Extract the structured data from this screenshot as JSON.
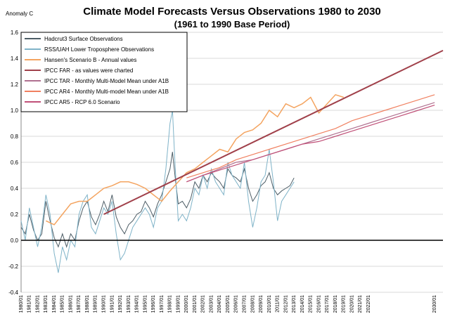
{
  "chart_data": {
    "type": "line",
    "title": "Climate Model Forecasts Versus Observations 1980 to 2030",
    "subtitle": "(1961 to 1990 Base Period)",
    "ylabel": "Anomaly C",
    "xlabel": "",
    "ylim": [
      -0.4,
      1.6
    ],
    "xlim": [
      1980.0,
      2031.0
    ],
    "grid": "horizontal",
    "legend_position": "top-left",
    "y_ticks": [
      "-0.4",
      "-0.2",
      "0.0",
      "0.2",
      "0.4",
      "0.6",
      "0.8",
      "1.0",
      "1.2",
      "1.4",
      "1.6"
    ],
    "x_tick_labels": [
      "1980/01",
      "1981/01",
      "1982/01",
      "1983/01",
      "1984/01",
      "1985/01",
      "1986/01",
      "1987/01",
      "1988/01",
      "1989/01",
      "1990/01",
      "1991/01",
      "1992/01",
      "1993/01",
      "1994/01",
      "1995/01",
      "1996/01",
      "1997/01",
      "1998/01",
      "1999/01",
      "2000/01",
      "2001/01",
      "2002/01",
      "2003/01",
      "2004/01",
      "2005/01",
      "2006/01",
      "2007/01",
      "2008/01",
      "2009/01",
      "2010/01",
      "2011/01",
      "2012/01",
      "2013/01",
      "2014/01",
      "2015/01",
      "2016/01",
      "2017/01",
      "2018/01",
      "2019/01",
      "2020/01",
      "2021/01",
      "2022/01",
      "2030/01"
    ],
    "x_tick_years": [
      1980,
      1981,
      1982,
      1983,
      1984,
      1985,
      1986,
      1987,
      1988,
      1989,
      1990,
      1991,
      1992,
      1993,
      1994,
      1995,
      1996,
      1997,
      1998,
      1999,
      2000,
      2001,
      2002,
      2003,
      2004,
      2005,
      2006,
      2007,
      2008,
      2009,
      2010,
      2011,
      2012,
      2013,
      2014,
      2015,
      2016,
      2017,
      2018,
      2019,
      2020,
      2021,
      2022,
      2030
    ],
    "series": [
      {
        "name": "Hadcrut3 Surface Observations",
        "color": "#4d5d66",
        "x": [
          1980.0,
          1980.5,
          1981.0,
          1981.5,
          1982.0,
          1982.5,
          1983.0,
          1983.5,
          1984.0,
          1984.5,
          1985.0,
          1985.5,
          1986.0,
          1986.5,
          1987.0,
          1987.5,
          1988.0,
          1988.5,
          1989.0,
          1989.5,
          1990.0,
          1990.5,
          1991.0,
          1991.5,
          1992.0,
          1992.5,
          1993.0,
          1993.5,
          1994.0,
          1994.5,
          1995.0,
          1995.5,
          1996.0,
          1996.5,
          1997.0,
          1997.5,
          1998.0,
          1998.3,
          1998.6,
          1999.0,
          1999.5,
          2000.0,
          2000.5,
          2001.0,
          2001.5,
          2002.0,
          2002.5,
          2003.0,
          2003.5,
          2004.0,
          2004.5,
          2005.0,
          2005.5,
          2006.0,
          2006.5,
          2007.0,
          2007.5,
          2008.0,
          2008.5,
          2009.0,
          2009.5,
          2010.0,
          2010.5,
          2011.0,
          2011.5,
          2012.0,
          2012.5,
          2013.0
        ],
        "y": [
          0.1,
          0.05,
          0.2,
          0.08,
          0.0,
          0.05,
          0.3,
          0.15,
          0.02,
          -0.05,
          0.05,
          -0.05,
          0.05,
          0.0,
          0.15,
          0.25,
          0.3,
          0.18,
          0.12,
          0.2,
          0.3,
          0.22,
          0.35,
          0.18,
          0.1,
          0.05,
          0.12,
          0.15,
          0.2,
          0.22,
          0.3,
          0.25,
          0.18,
          0.28,
          0.35,
          0.45,
          0.55,
          0.68,
          0.5,
          0.28,
          0.3,
          0.25,
          0.32,
          0.45,
          0.4,
          0.5,
          0.45,
          0.52,
          0.48,
          0.45,
          0.4,
          0.55,
          0.5,
          0.48,
          0.45,
          0.55,
          0.4,
          0.3,
          0.35,
          0.42,
          0.45,
          0.52,
          0.4,
          0.35,
          0.38,
          0.4,
          0.42,
          0.48
        ]
      },
      {
        "name": "RSS/UAH Lower Troposphere Observations",
        "color": "#7fb3c8",
        "x": [
          1980.0,
          1980.5,
          1981.0,
          1981.5,
          1982.0,
          1982.5,
          1983.0,
          1983.5,
          1984.0,
          1984.5,
          1985.0,
          1985.5,
          1986.0,
          1986.5,
          1987.0,
          1987.5,
          1988.0,
          1988.5,
          1989.0,
          1989.5,
          1990.0,
          1990.5,
          1991.0,
          1991.5,
          1992.0,
          1992.5,
          1993.0,
          1993.5,
          1994.0,
          1994.5,
          1995.0,
          1995.5,
          1996.0,
          1996.5,
          1997.0,
          1997.5,
          1998.0,
          1998.3,
          1998.6,
          1999.0,
          1999.5,
          2000.0,
          2000.5,
          2001.0,
          2001.5,
          2002.0,
          2002.5,
          2003.0,
          2003.5,
          2004.0,
          2004.5,
          2005.0,
          2005.5,
          2006.0,
          2006.5,
          2007.0,
          2007.5,
          2008.0,
          2008.5,
          2009.0,
          2009.5,
          2010.0,
          2010.5,
          2011.0,
          2011.5,
          2012.0,
          2012.5,
          2013.0
        ],
        "y": [
          0.15,
          0.0,
          0.25,
          0.1,
          -0.05,
          0.1,
          0.35,
          0.2,
          -0.1,
          -0.25,
          -0.05,
          -0.15,
          0.0,
          -0.05,
          0.2,
          0.3,
          0.35,
          0.1,
          0.05,
          0.15,
          0.25,
          0.2,
          0.3,
          0.05,
          -0.15,
          -0.1,
          0.0,
          0.1,
          0.15,
          0.2,
          0.25,
          0.2,
          0.1,
          0.25,
          0.3,
          0.55,
          0.9,
          1.0,
          0.6,
          0.15,
          0.2,
          0.15,
          0.25,
          0.4,
          0.35,
          0.5,
          0.4,
          0.55,
          0.45,
          0.4,
          0.35,
          0.6,
          0.5,
          0.45,
          0.4,
          0.6,
          0.3,
          0.1,
          0.25,
          0.45,
          0.5,
          0.7,
          0.45,
          0.15,
          0.3,
          0.35,
          0.4,
          0.45
        ]
      },
      {
        "name": "Hansen's Scenario B - Annual values",
        "color": "#f4a460",
        "x": [
          1983,
          1984,
          1985,
          1986,
          1987,
          1988,
          1989,
          1990,
          1991,
          1992,
          1993,
          1994,
          1995,
          1996,
          1997,
          1998,
          1999,
          2000,
          2001,
          2002,
          2003,
          2004,
          2005,
          2006,
          2007,
          2008,
          2009,
          2010,
          2011,
          2012,
          2013,
          2014,
          2015,
          2016,
          2017,
          2018,
          2019
        ],
        "y": [
          0.15,
          0.12,
          0.2,
          0.28,
          0.3,
          0.3,
          0.35,
          0.4,
          0.42,
          0.45,
          0.45,
          0.43,
          0.4,
          0.35,
          0.3,
          0.38,
          0.45,
          0.52,
          0.55,
          0.6,
          0.65,
          0.7,
          0.68,
          0.78,
          0.83,
          0.85,
          0.9,
          1.0,
          0.95,
          1.05,
          1.02,
          1.05,
          1.1,
          0.98,
          1.05,
          1.12,
          1.1
        ]
      },
      {
        "name": "IPCC FAR - as values were charted",
        "color": "#a0404a",
        "x": [
          1990,
          2031
        ],
        "y": [
          0.2,
          1.46
        ]
      },
      {
        "name": "IPCC TAR - Monthly Multi-Model Mean under A1B",
        "color": "#b07090",
        "x": [
          2000,
          2002,
          2004,
          2006,
          2008,
          2010,
          2012,
          2014,
          2016,
          2018,
          2020,
          2022,
          2024,
          2026,
          2028,
          2030
        ],
        "y": [
          0.45,
          0.5,
          0.55,
          0.6,
          0.62,
          0.66,
          0.7,
          0.74,
          0.78,
          0.82,
          0.86,
          0.9,
          0.94,
          0.98,
          1.02,
          1.06
        ]
      },
      {
        "name": "IPCC AR4 - Monthly Multi-model Mean under A1B",
        "color": "#f08060",
        "x": [
          2000,
          2002,
          2004,
          2006,
          2008,
          2010,
          2012,
          2014,
          2016,
          2018,
          2020,
          2022,
          2024,
          2026,
          2028,
          2030
        ],
        "y": [
          0.48,
          0.52,
          0.56,
          0.62,
          0.66,
          0.7,
          0.74,
          0.78,
          0.82,
          0.86,
          0.92,
          0.96,
          1.0,
          1.04,
          1.08,
          1.12
        ]
      },
      {
        "name": "IPCC AR5 - RCP 6.0 Scenario",
        "color": "#c05078",
        "x": [
          2000,
          2002,
          2004,
          2006,
          2008,
          2010,
          2012,
          2014,
          2016,
          2018,
          2020,
          2022,
          2024,
          2026,
          2028,
          2030
        ],
        "y": [
          0.45,
          0.5,
          0.54,
          0.58,
          0.62,
          0.66,
          0.7,
          0.74,
          0.76,
          0.8,
          0.84,
          0.88,
          0.92,
          0.96,
          1.0,
          1.04
        ]
      }
    ]
  }
}
